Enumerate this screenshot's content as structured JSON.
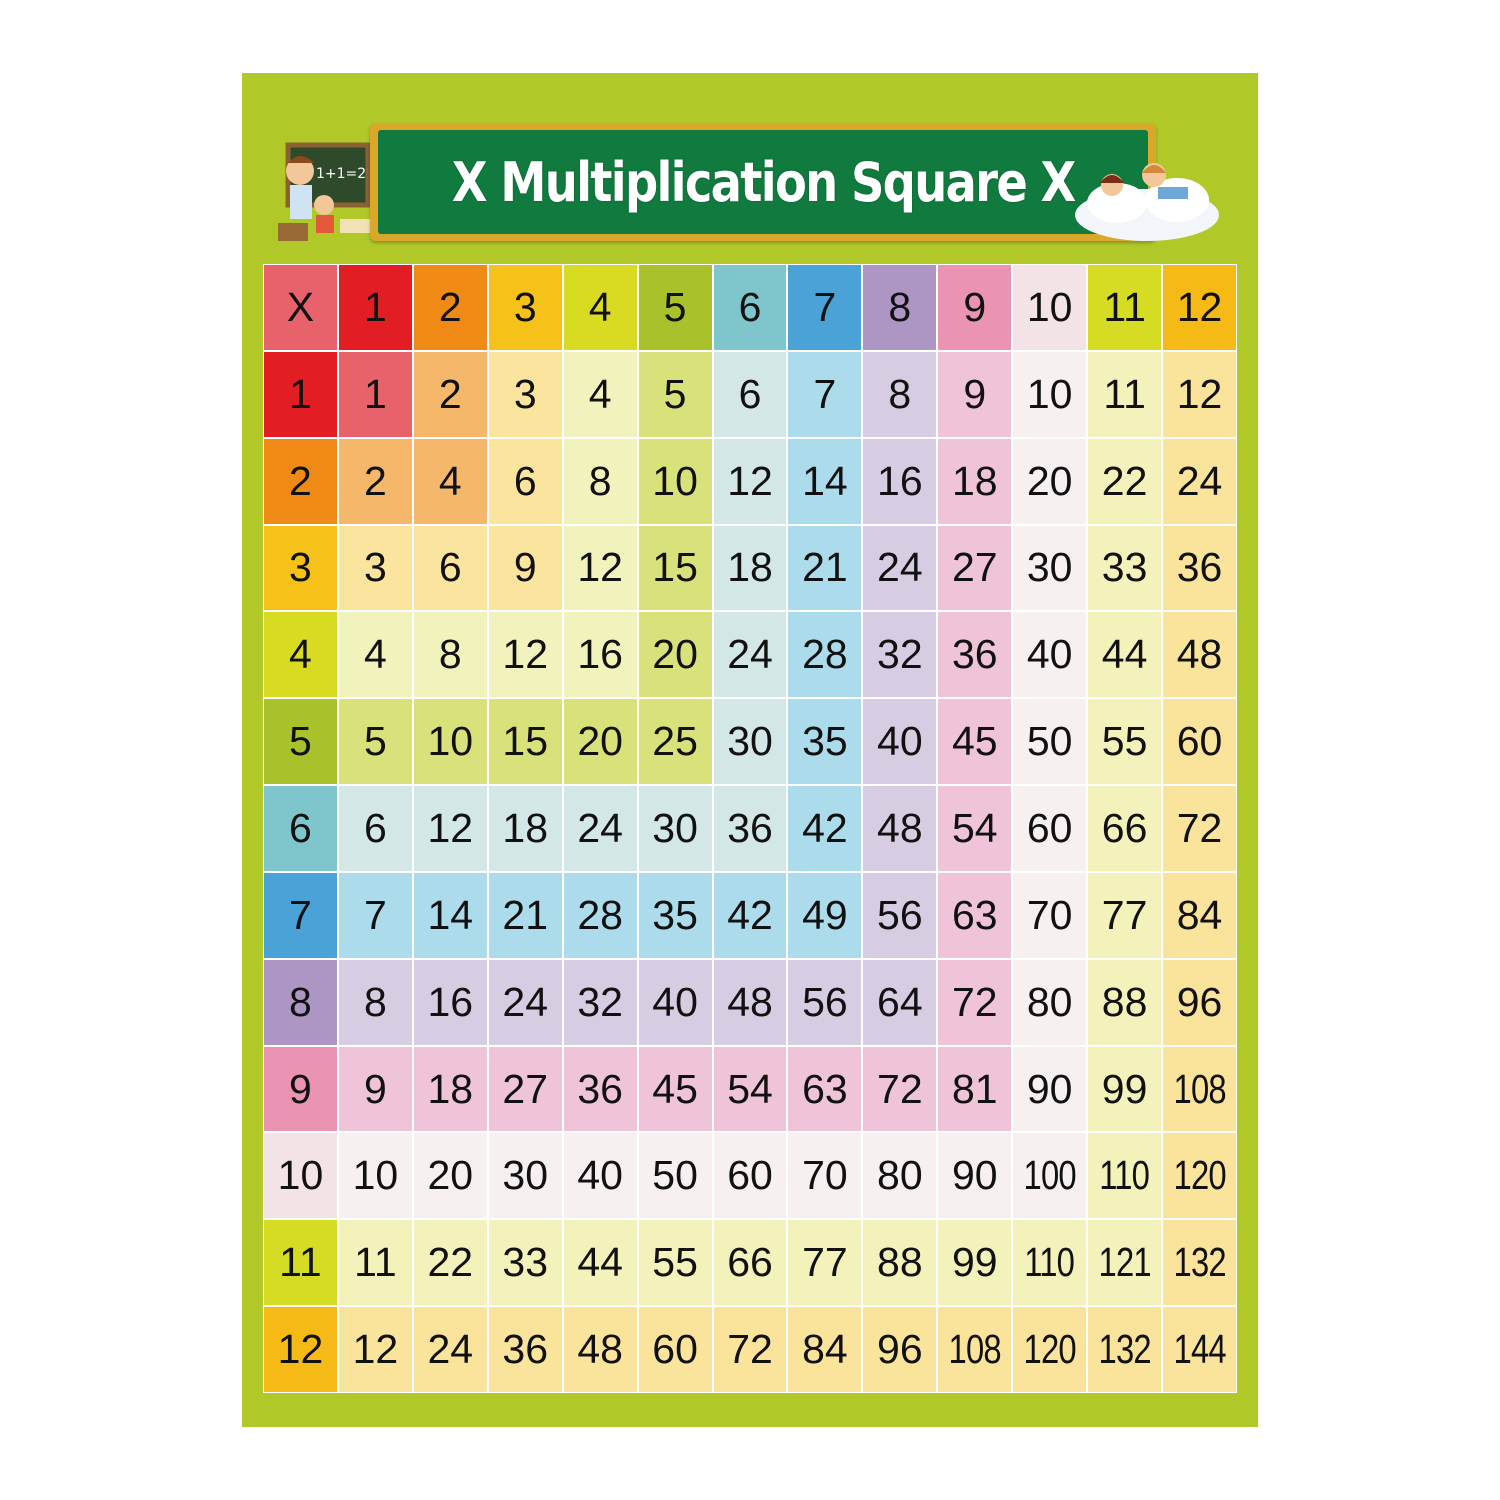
{
  "poster": {
    "title": "X Multiplication Square X",
    "chalkboard_text": "1+1=2",
    "background_color": "#b0c828",
    "banner_color": "#117a3e"
  },
  "table": {
    "corner_label": "X",
    "column_headers": [
      "1",
      "2",
      "3",
      "4",
      "5",
      "6",
      "7",
      "8",
      "9",
      "10",
      "11",
      "12"
    ],
    "row_headers": [
      "1",
      "2",
      "3",
      "4",
      "5",
      "6",
      "7",
      "8",
      "9",
      "10",
      "11",
      "12"
    ],
    "rows": [
      [
        "1",
        "2",
        "3",
        "4",
        "5",
        "6",
        "7",
        "8",
        "9",
        "10",
        "11",
        "12"
      ],
      [
        "2",
        "4",
        "6",
        "8",
        "10",
        "12",
        "14",
        "16",
        "18",
        "20",
        "22",
        "24"
      ],
      [
        "3",
        "6",
        "9",
        "12",
        "15",
        "18",
        "21",
        "24",
        "27",
        "30",
        "33",
        "36"
      ],
      [
        "4",
        "8",
        "12",
        "16",
        "20",
        "24",
        "28",
        "32",
        "36",
        "40",
        "44",
        "48"
      ],
      [
        "5",
        "10",
        "15",
        "20",
        "25",
        "30",
        "35",
        "40",
        "45",
        "50",
        "55",
        "60"
      ],
      [
        "6",
        "12",
        "18",
        "24",
        "30",
        "36",
        "42",
        "48",
        "54",
        "60",
        "66",
        "72"
      ],
      [
        "7",
        "14",
        "21",
        "28",
        "35",
        "42",
        "49",
        "56",
        "63",
        "70",
        "77",
        "84"
      ],
      [
        "8",
        "16",
        "24",
        "32",
        "40",
        "48",
        "56",
        "64",
        "72",
        "80",
        "88",
        "96"
      ],
      [
        "9",
        "18",
        "27",
        "36",
        "45",
        "54",
        "63",
        "72",
        "81",
        "90",
        "99",
        "108"
      ],
      [
        "10",
        "20",
        "30",
        "40",
        "50",
        "60",
        "70",
        "80",
        "90",
        "100",
        "110",
        "120"
      ],
      [
        "11",
        "22",
        "33",
        "44",
        "55",
        "66",
        "77",
        "88",
        "99",
        "110",
        "121",
        "132"
      ],
      [
        "12",
        "24",
        "36",
        "48",
        "60",
        "72",
        "84",
        "96",
        "108",
        "120",
        "132",
        "144"
      ]
    ],
    "corner_color": "#e8626c",
    "header_colors": [
      "#e31d24",
      "#f08a16",
      "#f6c219",
      "#d8db22",
      "#a9c12b",
      "#7fc5cc",
      "#4aa2d6",
      "#ad96c4",
      "#ea93b2",
      "#f4e3e6",
      "#d6dc24",
      "#f6ba16"
    ],
    "tint_colors": [
      "#e8626c",
      "#f5b86a",
      "#fbe49e",
      "#f2f2bc",
      "#d9e27a",
      "#d2e7e6",
      "#acdcec",
      "#d6cde2",
      "#efc4d8",
      "#f6f0f1",
      "#f2f2ba",
      "#fae49c"
    ]
  }
}
